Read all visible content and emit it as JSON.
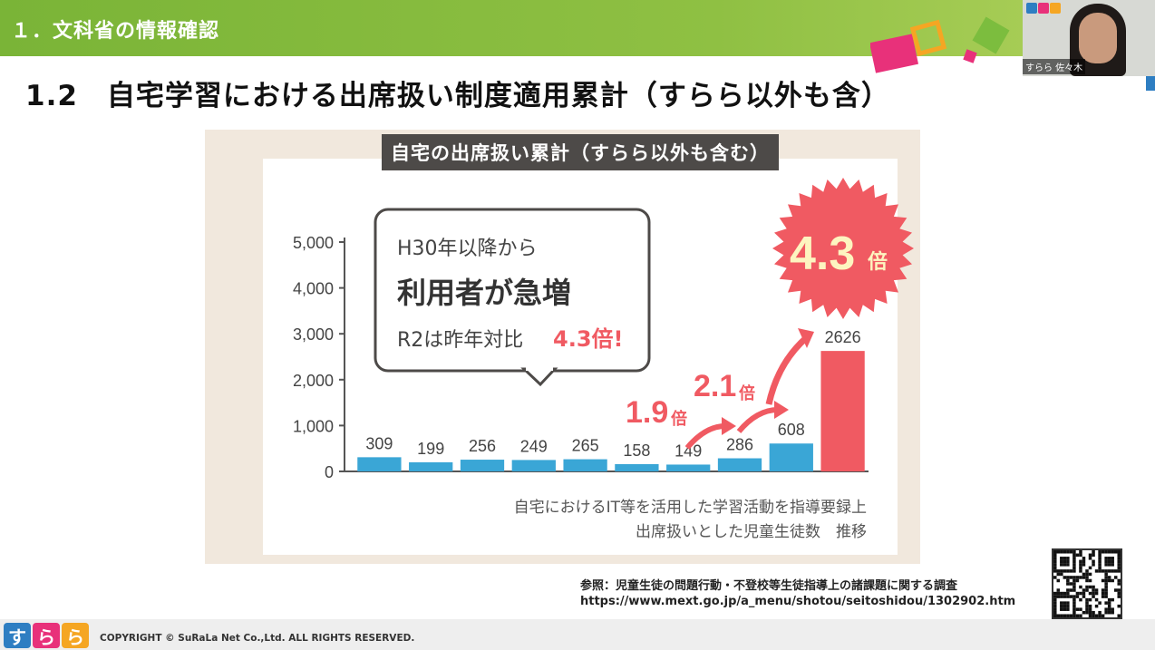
{
  "header": {
    "section_title": "１．文科省の情報確認",
    "slide_title": "1.2　自宅学習における出席扱い制度適用累計（すらら以外も含）"
  },
  "video": {
    "name": "すらら 佐々木"
  },
  "chart": {
    "banner": "自宅の出席扱い累計（すらら以外も含む）",
    "callout_line1": "H30年以降から",
    "callout_line2": "利用者が急増",
    "callout_line3a": "R2は昨年対比",
    "callout_line3b": "4.3倍!",
    "badge": "4.3",
    "badge_suffix": "倍",
    "mult1": "1.9",
    "mult1_suffix": "倍",
    "mult2": "2.1",
    "mult2_suffix": "倍",
    "caption_line1": "自宅におけるIT等を活用した学習活動を指導要録上",
    "caption_line2": "出席扱いとした児童生徒数　推移"
  },
  "chart_data": {
    "type": "bar",
    "title": "自宅の出席扱い累計（すらら以外も含む）",
    "values": [
      309,
      199,
      256,
      249,
      265,
      158,
      149,
      286,
      608,
      2626
    ],
    "ylim": [
      0,
      5000
    ],
    "yticks": [
      0,
      1000,
      2000,
      3000,
      4000,
      5000
    ],
    "ytick_labels": [
      "0",
      "1,000",
      "2,000",
      "3,000",
      "4,000",
      "5,000"
    ],
    "bar_color": "#3aa6d6",
    "highlight_color": "#f05a62",
    "highlight_index": 9
  },
  "source": {
    "line1": "参照：児童生徒の問題行動・不登校等生徒指導上の諸課題に関する調査",
    "line2": "https://www.mext.go.jp/a_menu/shotou/seitoshidou/1302902.htm"
  },
  "footer": {
    "logo_chars": [
      "す",
      "ら",
      "ら"
    ],
    "copyright": "COPYRIGHT © SuRaLa Net Co.,Ltd. ALL RIGHTS RESERVED."
  },
  "colors": {
    "brand_green": "#8fc043",
    "accent_red": "#f05a62",
    "bar_blue": "#3aa6d6"
  }
}
